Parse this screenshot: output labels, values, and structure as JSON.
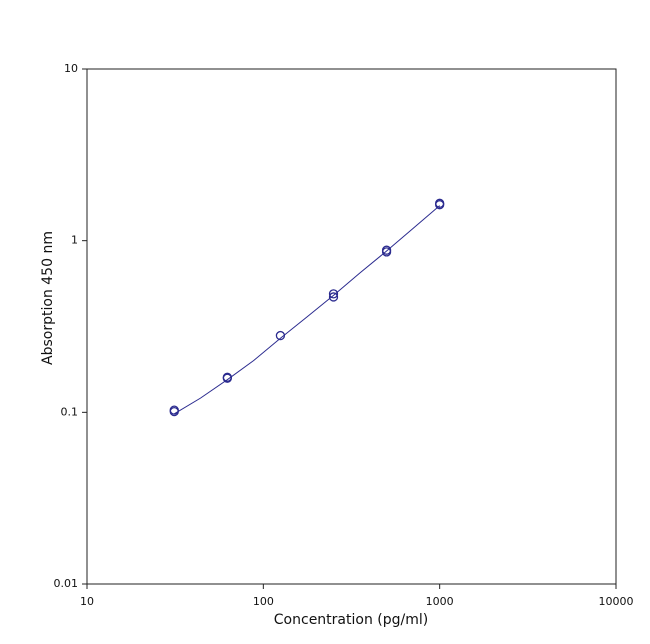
{
  "chart_data": {
    "type": "scatter",
    "x_label": "Concentration (pg/ml)",
    "y_label": "Absorption 450 nm",
    "xlim": [
      10,
      10000
    ],
    "ylim": [
      0.01,
      10
    ],
    "xticks": [
      10,
      100,
      1000,
      10000
    ],
    "yticks": [
      0.01,
      0.1,
      1,
      10
    ],
    "xscale": "log",
    "yscale": "log",
    "series": [
      {
        "mode": "markers",
        "color": "#2b2b8f",
        "x": [
          31.25,
          31.25,
          62.5,
          62.5,
          125,
          250,
          250,
          500,
          500,
          1000,
          1000
        ],
        "values": [
          0.103,
          0.101,
          0.16,
          0.158,
          0.28,
          0.49,
          0.47,
          0.88,
          0.86,
          1.65,
          1.62
        ]
      },
      {
        "mode": "line",
        "color": "#2b2b8f",
        "x": [
          31.25,
          44,
          62.5,
          88,
          125,
          177,
          250,
          354,
          500,
          707,
          1000
        ],
        "values": [
          0.098,
          0.121,
          0.155,
          0.2,
          0.27,
          0.36,
          0.48,
          0.65,
          0.87,
          1.18,
          1.6
        ]
      }
    ]
  }
}
